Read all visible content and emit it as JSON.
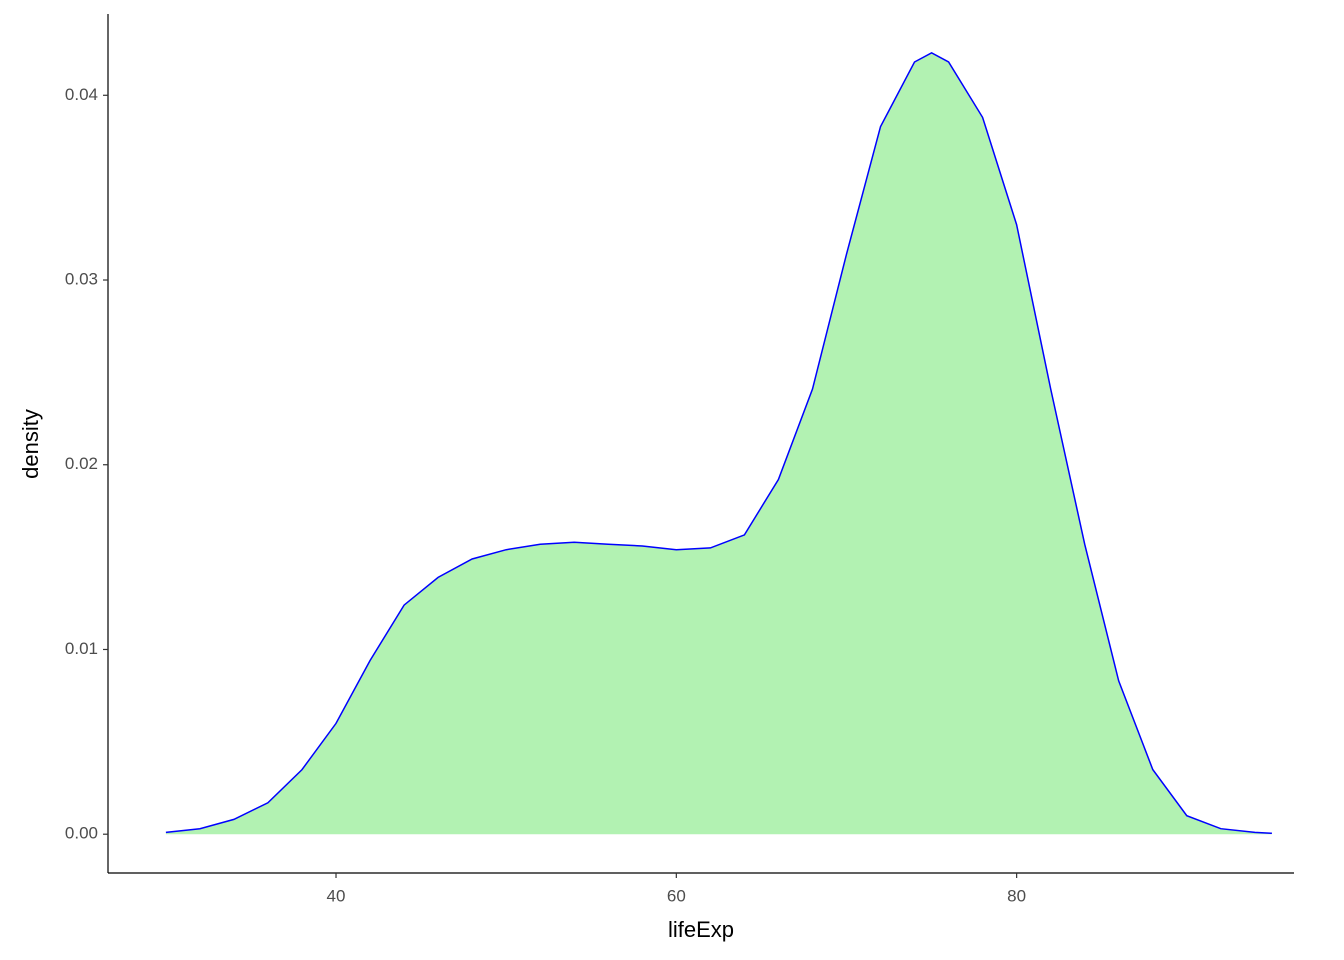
{
  "chart_data": {
    "type": "density",
    "x_label": "lifeExp",
    "y_label": "density",
    "x": [
      30,
      32,
      34,
      36,
      38,
      40,
      42,
      44,
      46,
      48,
      50,
      52,
      54,
      56,
      58,
      60,
      62,
      64,
      66,
      68,
      70,
      72,
      74,
      75,
      76,
      78,
      80,
      82,
      84,
      86,
      88,
      90,
      92,
      94,
      95
    ],
    "values": [
      0.0001,
      0.0003,
      0.0008,
      0.0017,
      0.0035,
      0.006,
      0.0094,
      0.0124,
      0.0139,
      0.0149,
      0.0154,
      0.0157,
      0.0158,
      0.0157,
      0.0156,
      0.0154,
      0.0155,
      0.0162,
      0.0192,
      0.0241,
      0.0314,
      0.0383,
      0.0418,
      0.0423,
      0.0418,
      0.0388,
      0.033,
      0.0241,
      0.0157,
      0.0083,
      0.0035,
      0.001,
      0.0003,
      0.0001,
      5e-05
    ],
    "fill_color": "#b2f2b2",
    "line_color": "#0000ff",
    "xlim": [
      26.6,
      96.3
    ],
    "xticks": [
      40,
      60,
      80
    ],
    "ylim": [
      -0.0021,
      0.0444
    ],
    "yticks": [
      {
        "value": 0,
        "label": "0.00"
      },
      {
        "value": 0.01,
        "label": "0.01"
      },
      {
        "value": 0.02,
        "label": "0.02"
      },
      {
        "value": 0.03,
        "label": "0.03"
      },
      {
        "value": 0.04,
        "label": "0.04"
      }
    ]
  }
}
